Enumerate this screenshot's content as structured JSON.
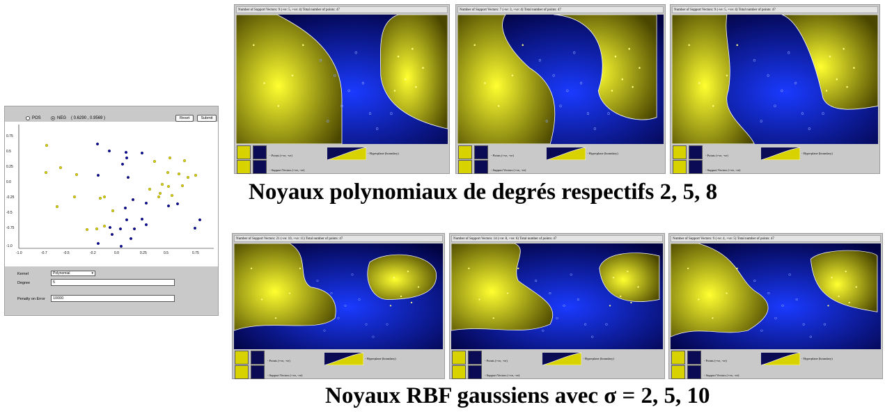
{
  "applet": {
    "pos_label": "POS",
    "neg_label": "NEG",
    "coords": "( 0.6290 , 0.9569 )",
    "reset_label": "Reset",
    "submit_label": "Submit",
    "kernel_label": "Kernel",
    "kernel_value": "Polynomial",
    "degree_label": "Degree",
    "degree_value": "5",
    "penalty_label": "Penalty on Error",
    "penalty_value": "10000",
    "y_ticks": [
      "0.75",
      "0.5",
      "0.25",
      "0.0",
      "-0.25",
      "-0.5",
      "-0.75",
      "-1.0"
    ],
    "x_ticks": [
      "-1.0",
      "-0.7",
      "-0.5",
      "-0.2",
      "0.0",
      "0.25",
      "0.5",
      "0.75"
    ],
    "colors": {
      "pos": "#d7d200",
      "neg": "#0a0a9a"
    }
  },
  "panels": [
    {
      "sv": "Number of Support Vectors: 9",
      "detail": "(-ve: 5, +ve: 4)",
      "total": "Total number of points: 47"
    },
    {
      "sv": "Number of Support Vectors: 7",
      "detail": "(-ve: 3, +ve: 4)",
      "total": "Total number of points: 47"
    },
    {
      "sv": "Number of Support Vectors: 9",
      "detail": "(-ve: 5, +ve: 4)",
      "total": "Total number of points: 47"
    },
    {
      "sv": "Number of Support Vectors: 21",
      "detail": "(-ve: 10, +ve: 11)",
      "total": "Total number of points: 47"
    },
    {
      "sv": "Number of Support Vectors: 14",
      "detail": "(-ve: 8, +ve: 6)",
      "total": "Total number of points: 47"
    },
    {
      "sv": "Number of Support Vectors: 9",
      "detail": "(-ve: 4, +ve: 5)",
      "total": "Total number of points: 47"
    }
  ],
  "legend": {
    "points": "- Points (+ve, -ve)",
    "support_vectors": "- Support Vectors (+ve, -ve)",
    "hyperplane": "- Hyperplane (boundary)"
  },
  "captions": {
    "poly": "Noyaux polynomiaux de degrés respectifs 2, 5, 8",
    "rbf": "Noyaux RBF gaussiens avec σ = 2, 5, 10"
  }
}
